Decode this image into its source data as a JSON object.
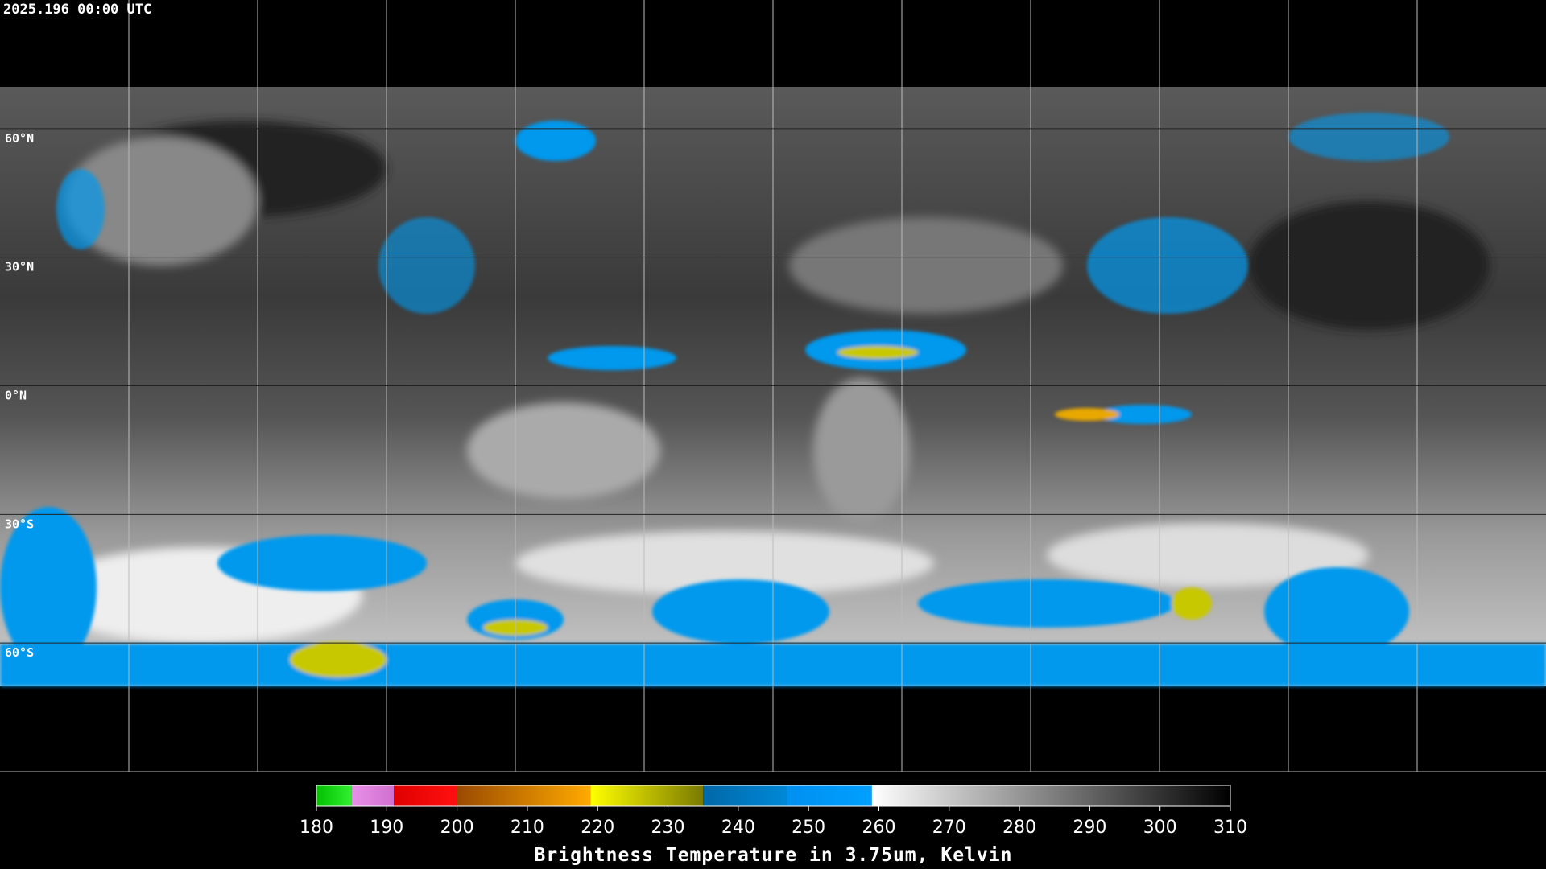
{
  "map": {
    "title": "2025.196 00:00 UTC",
    "lat_lim": [
      90,
      -90
    ],
    "lat_ticks": [
      {
        "value": 60,
        "label": "60°N"
      },
      {
        "value": 30,
        "label": "30°N"
      },
      {
        "value": 0,
        "label": "0°N"
      },
      {
        "value": -30,
        "label": "30°S"
      },
      {
        "value": -60,
        "label": "60°S"
      }
    ]
  },
  "colorbar": {
    "type": "colorbar",
    "label": "Brightness Temperature in 3.75um, Kelvin",
    "lim": [
      180,
      310
    ],
    "ticks": [
      180,
      190,
      200,
      210,
      220,
      230,
      240,
      250,
      260,
      270,
      280,
      290,
      300,
      310
    ],
    "segments": [
      {
        "from": 180,
        "to": 185,
        "colors": [
          "#00c000",
          "#30f030"
        ]
      },
      {
        "from": 185,
        "to": 191,
        "colors": [
          "#e890e8",
          "#d070d0"
        ]
      },
      {
        "from": 191,
        "to": 200,
        "colors": [
          "#e00000",
          "#ff1010"
        ]
      },
      {
        "from": 200,
        "to": 219,
        "colors": [
          "#9a4a00",
          "#ffaa00"
        ]
      },
      {
        "from": 219,
        "to": 235,
        "colors": [
          "#ffff00",
          "#7a7a00"
        ]
      },
      {
        "from": 235,
        "to": 247,
        "colors": [
          "#0068a8",
          "#0088d8"
        ]
      },
      {
        "from": 247,
        "to": 259,
        "colors": [
          "#0090f0",
          "#00a0ff"
        ]
      },
      {
        "from": 259,
        "to": 310,
        "colors": [
          "#ffffff",
          "#000000"
        ]
      }
    ]
  }
}
